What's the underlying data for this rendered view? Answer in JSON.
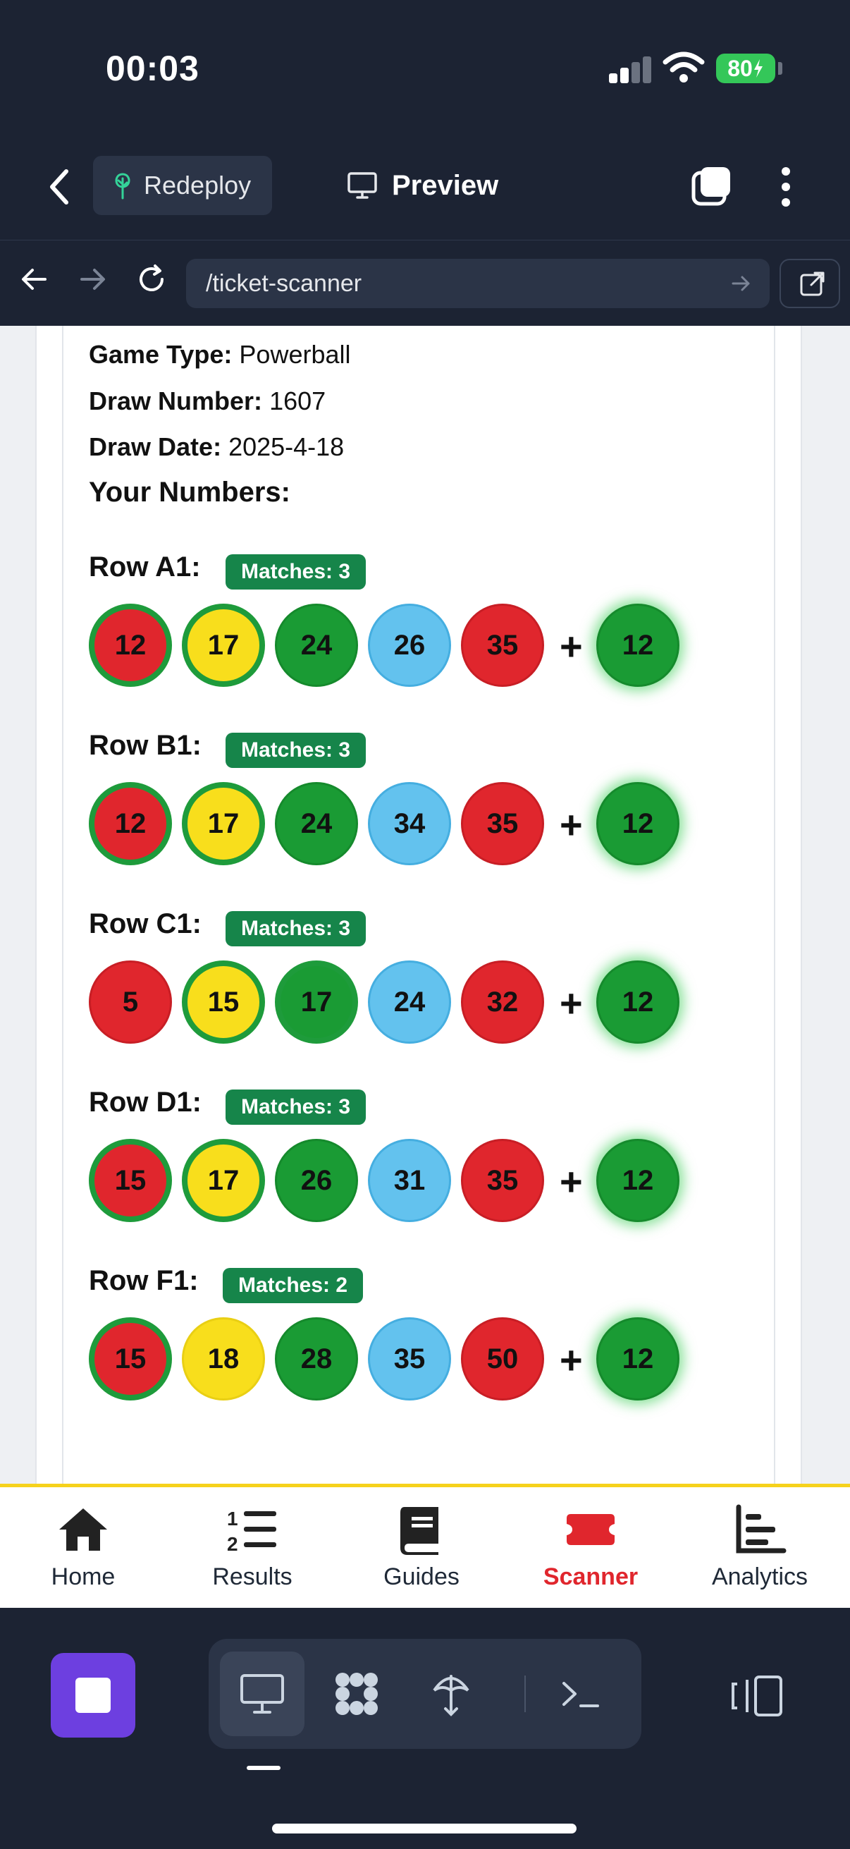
{
  "status_bar": {
    "time": "00:03",
    "battery": "80"
  },
  "toolbar": {
    "redeploy_label": "Redeploy",
    "preview_label": "Preview"
  },
  "url_bar": {
    "path": "/ticket-scanner"
  },
  "ticket": {
    "game_type_label": "Game Type:",
    "game_type": "Powerball",
    "draw_number_label": "Draw Number:",
    "draw_number": "1607",
    "draw_date_label": "Draw Date:",
    "draw_date": "2025-4-18",
    "your_numbers_label": "Your Numbers:",
    "plus": "+",
    "rows": [
      {
        "label": "Row A1:",
        "matches": "Matches: 3",
        "balls": [
          {
            "n": "12",
            "c": "red",
            "m": true
          },
          {
            "n": "17",
            "c": "yellow",
            "m": true
          },
          {
            "n": "24",
            "c": "green",
            "m": false
          },
          {
            "n": "26",
            "c": "blue",
            "m": false
          },
          {
            "n": "35",
            "c": "red",
            "m": false
          }
        ],
        "powerball": {
          "n": "12",
          "c": "green",
          "m": true
        }
      },
      {
        "label": "Row B1:",
        "matches": "Matches: 3",
        "balls": [
          {
            "n": "12",
            "c": "red",
            "m": true
          },
          {
            "n": "17",
            "c": "yellow",
            "m": true
          },
          {
            "n": "24",
            "c": "green",
            "m": false
          },
          {
            "n": "34",
            "c": "blue",
            "m": false
          },
          {
            "n": "35",
            "c": "red",
            "m": false
          }
        ],
        "powerball": {
          "n": "12",
          "c": "green",
          "m": true
        }
      },
      {
        "label": "Row C1:",
        "matches": "Matches: 3",
        "balls": [
          {
            "n": "5",
            "c": "red",
            "m": false
          },
          {
            "n": "15",
            "c": "yellow",
            "m": true
          },
          {
            "n": "17",
            "c": "green",
            "m": true
          },
          {
            "n": "24",
            "c": "blue",
            "m": false
          },
          {
            "n": "32",
            "c": "red",
            "m": false
          }
        ],
        "powerball": {
          "n": "12",
          "c": "green",
          "m": true
        }
      },
      {
        "label": "Row D1:",
        "matches": "Matches: 3",
        "balls": [
          {
            "n": "15",
            "c": "red",
            "m": true
          },
          {
            "n": "17",
            "c": "yellow",
            "m": true
          },
          {
            "n": "26",
            "c": "green",
            "m": false
          },
          {
            "n": "31",
            "c": "blue",
            "m": false
          },
          {
            "n": "35",
            "c": "red",
            "m": false
          }
        ],
        "powerball": {
          "n": "12",
          "c": "green",
          "m": true
        }
      },
      {
        "label": "Row F1:",
        "matches": "Matches: 2",
        "balls": [
          {
            "n": "15",
            "c": "red",
            "m": true
          },
          {
            "n": "18",
            "c": "yellow",
            "m": false
          },
          {
            "n": "28",
            "c": "green",
            "m": false
          },
          {
            "n": "35",
            "c": "blue",
            "m": false
          },
          {
            "n": "50",
            "c": "red",
            "m": false
          }
        ],
        "powerball": {
          "n": "12",
          "c": "green",
          "m": true
        }
      }
    ]
  },
  "bottom_nav": {
    "items": [
      {
        "label": "Home",
        "icon": "home-icon"
      },
      {
        "label": "Results",
        "icon": "list-icon"
      },
      {
        "label": "Guides",
        "icon": "book-icon"
      },
      {
        "label": "Scanner",
        "icon": "ticket-icon",
        "active": true
      },
      {
        "label": "Analytics",
        "icon": "bar-chart-icon"
      }
    ]
  },
  "colors": {
    "accent": "#e0262d",
    "match_badge": "#16854a",
    "nav_border": "#f6d21c",
    "dock_primary": "#6d3fe0"
  }
}
